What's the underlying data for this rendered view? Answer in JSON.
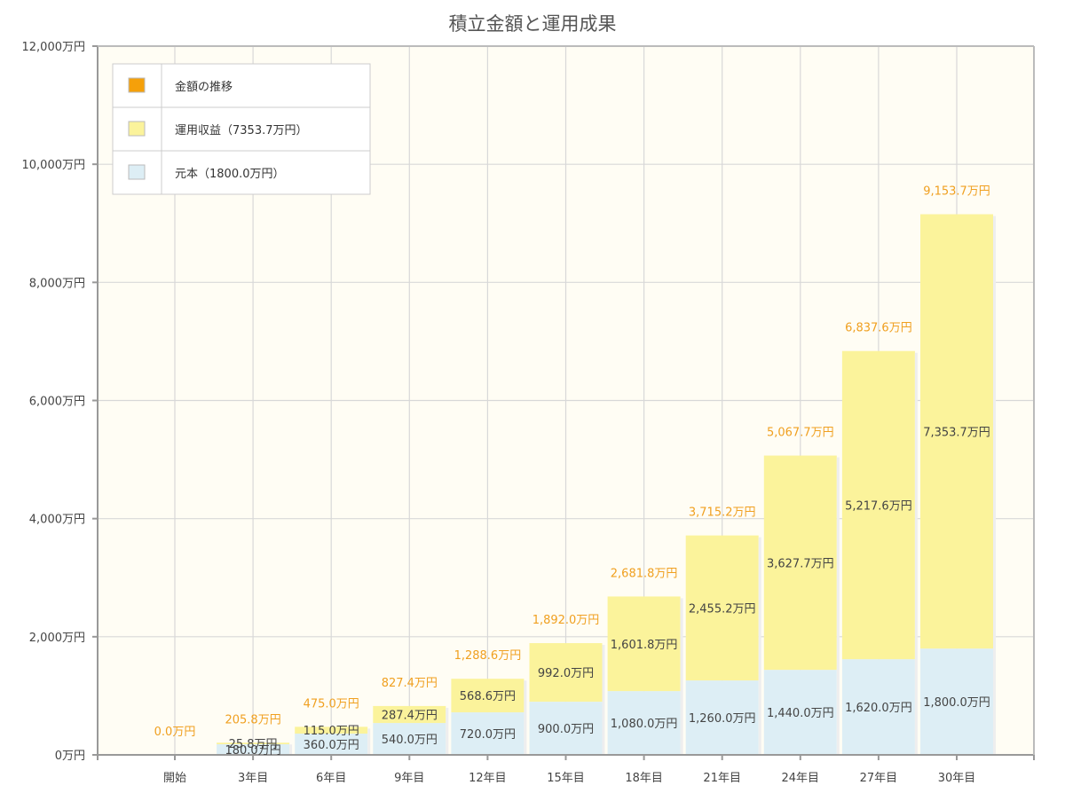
{
  "chart_data": {
    "type": "bar",
    "stacked": true,
    "title": "積立金額と運用成果",
    "xlabel": "",
    "ylabel": "",
    "ylim": [
      0,
      12000
    ],
    "yticks": [
      "0万円",
      "2,000万円",
      "4,000万円",
      "6,000万円",
      "8,000万円",
      "10,000万円",
      "12,000万円"
    ],
    "ytick_values": [
      0,
      2000,
      4000,
      6000,
      8000,
      10000,
      12000
    ],
    "categories": [
      "開始",
      "3年目",
      "6年目",
      "9年目",
      "12年目",
      "15年目",
      "18年目",
      "21年目",
      "24年目",
      "27年目",
      "30年目"
    ],
    "series": [
      {
        "name": "元本",
        "color": "#ddeef5",
        "values": [
          0,
          180.0,
          360.0,
          540.0,
          720.0,
          900.0,
          1080.0,
          1260.0,
          1440.0,
          1620.0,
          1800.0
        ],
        "labels": [
          "",
          "180.0万円",
          "360.0万円",
          "540.0万円",
          "720.0万円",
          "900.0万円",
          "1,080.0万円",
          "1,260.0万円",
          "1,440.0万円",
          "1,620.0万円",
          "1,800.0万円"
        ]
      },
      {
        "name": "運用収益",
        "color": "#fbf39b",
        "values": [
          0,
          25.8,
          115.0,
          287.4,
          568.6,
          992.0,
          1601.8,
          2455.2,
          3627.7,
          5217.6,
          7353.7
        ],
        "labels": [
          "",
          "25.8万円",
          "115.0万円",
          "287.4万円",
          "568.6万円",
          "992.0万円",
          "1,601.8万円",
          "2,455.2万円",
          "3,627.7万円",
          "5,217.6万円",
          "7,353.7万円"
        ]
      }
    ],
    "totals": {
      "name": "金額の推移",
      "color": "#f0a020",
      "values": [
        0.0,
        205.8,
        475.0,
        827.4,
        1288.6,
        1892.0,
        2681.8,
        3715.2,
        5067.7,
        6837.6,
        9153.7
      ],
      "labels": [
        "0.0万円",
        "205.8万円",
        "475.0万円",
        "827.4万円",
        "1,288.6万円",
        "1,892.0万円",
        "2,681.8万円",
        "3,715.2万円",
        "5,067.7万円",
        "6,837.6万円",
        "9,153.7万円"
      ]
    },
    "legend": {
      "position": "top-left",
      "items": [
        {
          "label": "金額の推移",
          "color": "#f5a00a"
        },
        {
          "label": "運用収益（7353.7万円）",
          "color": "#fbf39b"
        },
        {
          "label": "元本（1800.0万円）",
          "color": "#ddeef5"
        }
      ]
    },
    "grid": true
  }
}
